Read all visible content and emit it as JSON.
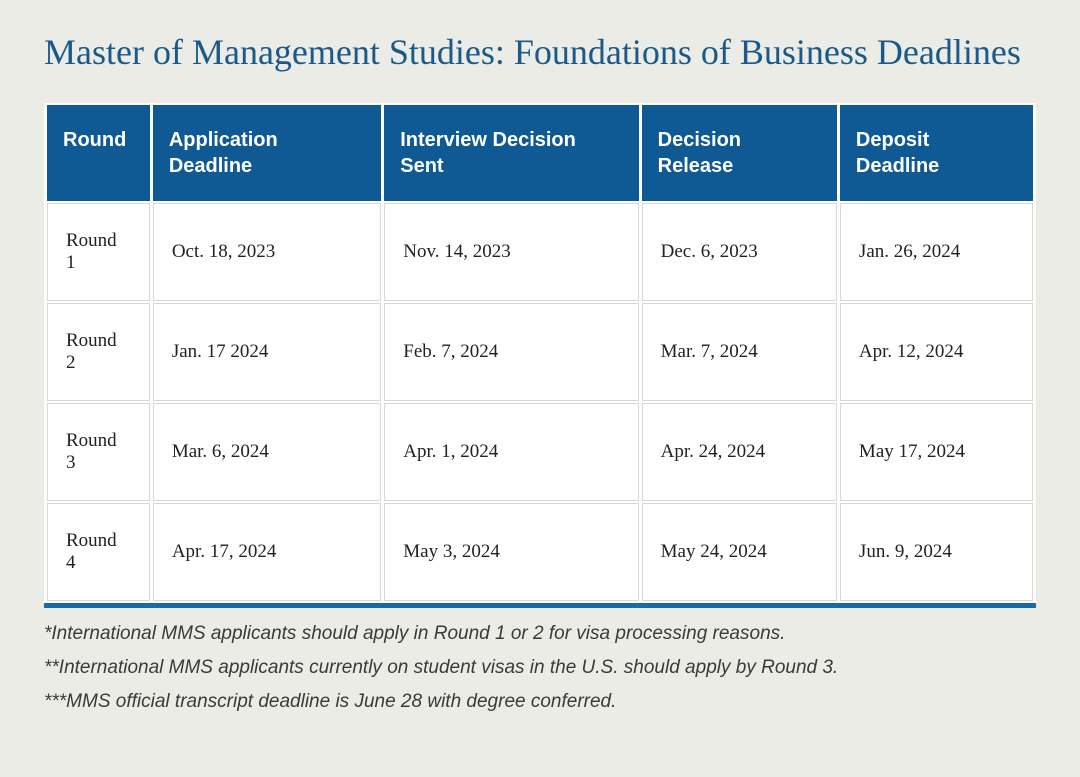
{
  "title": "Master of Management Studies: Foundations of Business Deadlines",
  "colors": {
    "page_bg": "#ecece7",
    "title_color": "#1a5a8a",
    "header_bg": "#0f5a94",
    "header_text": "#ffffff",
    "cell_border": "#d8d8d4",
    "cell_text": "#222222",
    "table_bottom_border": "#1a6aa8",
    "notes_text": "#3a3a3a"
  },
  "typography": {
    "title_fontsize": 36,
    "header_fontsize": 20,
    "cell_fontsize": 19,
    "notes_fontsize": 19,
    "title_font": "Georgia serif",
    "header_font": "sans-serif",
    "cell_font": "Georgia serif"
  },
  "table": {
    "type": "table",
    "columns": [
      {
        "label": "Round"
      },
      {
        "label": "Application Deadline"
      },
      {
        "label": "Interview Decision Sent"
      },
      {
        "label": "Decision Release"
      },
      {
        "label": "Deposit Deadline"
      }
    ],
    "rows": [
      {
        "round": "Round 1",
        "app": "Oct. 18, 2023",
        "interview": "Nov. 14, 2023",
        "decision": "Dec. 6, 2023",
        "deposit": "Jan. 26, 2024"
      },
      {
        "round": "Round 2",
        "app": "Jan. 17 2024",
        "interview": "Feb. 7, 2024",
        "decision": "Mar. 7, 2024",
        "deposit": "Apr. 12, 2024"
      },
      {
        "round": "Round 3",
        "app": "Mar. 6, 2024",
        "interview": "Apr. 1, 2024",
        "decision": "Apr. 24, 2024",
        "deposit": "May 17, 2024"
      },
      {
        "round": "Round 4",
        "app": "Apr. 17, 2024",
        "interview": "May 3, 2024",
        "decision": "May 24, 2024",
        "deposit": "Jun. 9, 2024"
      }
    ]
  },
  "notes": [
    "*International MMS applicants should apply in Round 1 or 2 for visa processing reasons.",
    "**International MMS applicants currently on student visas in the U.S. should apply by Round 3.",
    "***MMS official transcript deadline is June 28 with degree conferred."
  ]
}
